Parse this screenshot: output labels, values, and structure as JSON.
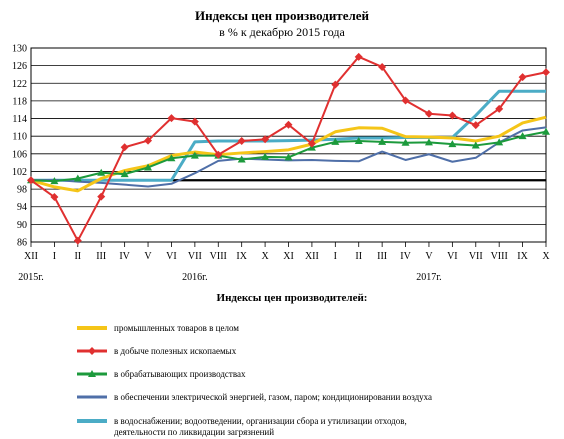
{
  "chart_data": {
    "type": "line",
    "title": "Индексы цен производителей",
    "subtitle": "в % к декабрю 2015 года",
    "ylim": [
      86,
      130
    ],
    "yticks": [
      86,
      90,
      94,
      98,
      102,
      106,
      110,
      114,
      118,
      122,
      126,
      130
    ],
    "reference_line": 100,
    "categories": [
      "XII",
      "I",
      "II",
      "III",
      "IV",
      "V",
      "VI",
      "VII",
      "VIII",
      "IX",
      "X",
      "XI",
      "XII",
      "I",
      "II",
      "III",
      "IV",
      "V",
      "VI",
      "VII",
      "VIII",
      "IX",
      "X"
    ],
    "years": [
      {
        "label": "2015г.",
        "index": 0
      },
      {
        "label": "2016г.",
        "index": 7
      },
      {
        "label": "2017г.",
        "index": 17
      }
    ],
    "grid": "horizontal",
    "legend_title": "Индексы цен производителей:",
    "series": [
      {
        "name": "промышленных товаров в целом",
        "color": "#f5c518",
        "marker": "none",
        "width": 3,
        "values": [
          100,
          98.5,
          97.6,
          100.4,
          102.2,
          103.3,
          105.6,
          106.4,
          105.8,
          106.2,
          106.5,
          106.9,
          108.2,
          111.0,
          111.9,
          111.8,
          109.9,
          109.8,
          109.6,
          108.9,
          110.0,
          113.0,
          114.3
        ]
      },
      {
        "name": "в добыче полезных ископаемых",
        "color": "#e03030",
        "marker": "diamond",
        "width": 2,
        "values": [
          100,
          96.2,
          86.3,
          96.3,
          107.5,
          109.0,
          114.1,
          113.3,
          105.8,
          108.9,
          109.3,
          112.6,
          108.3,
          121.7,
          128.0,
          125.7,
          118.1,
          115.1,
          114.7,
          112.5,
          116.2,
          123.4,
          124.5
        ]
      },
      {
        "name": "в обрабатывающих производствах",
        "color": "#1c9a3c",
        "marker": "triangle",
        "width": 2,
        "values": [
          100,
          99.8,
          100.4,
          101.7,
          101.4,
          102.9,
          105.0,
          105.6,
          105.6,
          104.7,
          105.3,
          105.2,
          107.4,
          108.7,
          108.9,
          108.7,
          108.5,
          108.6,
          108.2,
          107.9,
          108.6,
          110.0,
          111.0
        ]
      },
      {
        "name": "в обеспечении электрической энергией, газом, паром; кондиционировании воздуха",
        "color": "#4f6fa8",
        "marker": "none",
        "width": 2,
        "values": [
          100,
          100.1,
          99.7,
          99.4,
          99.0,
          98.6,
          99.2,
          101.6,
          104.4,
          104.9,
          104.7,
          104.5,
          104.6,
          104.4,
          104.3,
          106.5,
          104.6,
          105.9,
          104.2,
          105.1,
          108.6,
          111.3,
          112.0
        ]
      },
      {
        "name": "в водоснабжении; водоотведении, организации сбора и утилизации отходов, деятельности по ликвидации загрязнений",
        "color": "#4bacc6",
        "marker": "none",
        "width": 3,
        "values": [
          100,
          100,
          100,
          100,
          100,
          100,
          100,
          108.7,
          108.9,
          108.9,
          108.9,
          109.0,
          109.1,
          109.3,
          109.6,
          109.6,
          109.7,
          109.7,
          109.7,
          114.7,
          120.2,
          120.2,
          120.2
        ]
      }
    ]
  }
}
